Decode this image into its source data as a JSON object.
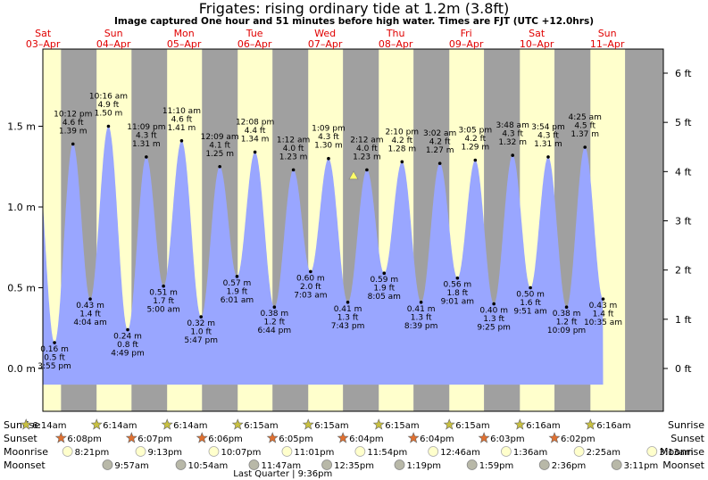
{
  "title": "Frigates: rising  ordinary tide at 1.2m (3.8ft)",
  "subtitle": "Image captured One hour and 51 minutes before high water. Times are FJT (UTC +12.0hrs)",
  "days": [
    {
      "name": "Sat",
      "date": "03–Apr"
    },
    {
      "name": "Sun",
      "date": "04–Apr"
    },
    {
      "name": "Mon",
      "date": "05–Apr"
    },
    {
      "name": "Tue",
      "date": "06–Apr"
    },
    {
      "name": "Wed",
      "date": "07–Apr"
    },
    {
      "name": "Thu",
      "date": "08–Apr"
    },
    {
      "name": "Fri",
      "date": "09–Apr"
    },
    {
      "name": "Sat",
      "date": "10–Apr"
    },
    {
      "name": "Sun",
      "date": "11–Apr"
    }
  ],
  "chart_data": {
    "type": "area",
    "xlabel": "",
    "ylabel": "",
    "y_unit_left": "m",
    "y_unit_right": "ft",
    "ylim": [
      -0.27,
      1.85
    ],
    "yticks_m": [
      "0.0 m",
      "0.5 m",
      "1.0 m",
      "1.5 m"
    ],
    "yticks_ft": [
      "0 ft",
      "1 ft",
      "2 ft",
      "3 ft",
      "4 ft",
      "5 ft",
      "6 ft"
    ],
    "grid": false,
    "colors": {
      "fill": "#99a6ff",
      "day": "#ffffcc",
      "night": "#a0a0a0",
      "day_label": "#e00000"
    },
    "current_level_m": 1.2,
    "extremes": [
      {
        "type": "low",
        "time": "3:55 pm",
        "m": 0.16,
        "ft": "0.5 ft",
        "label_m": "0.16 m"
      },
      {
        "type": "high",
        "time": "10:12 pm",
        "m": 1.39,
        "ft": "4.6 ft",
        "label_m": "1.39 m"
      },
      {
        "type": "low",
        "time": "4:04 am",
        "m": 0.43,
        "ft": "1.4 ft",
        "label_m": "0.43 m"
      },
      {
        "type": "high",
        "time": "10:16 am",
        "m": 1.5,
        "ft": "4.9 ft",
        "label_m": "1.50 m"
      },
      {
        "type": "low",
        "time": "4:49 pm",
        "m": 0.24,
        "ft": "0.8 ft",
        "label_m": "0.24 m"
      },
      {
        "type": "high",
        "time": "11:09 pm",
        "m": 1.31,
        "ft": "4.3 ft",
        "label_m": "1.31 m"
      },
      {
        "type": "low",
        "time": "5:00 am",
        "m": 0.51,
        "ft": "1.7 ft",
        "label_m": "0.51 m"
      },
      {
        "type": "high",
        "time": "11:10 am",
        "m": 1.41,
        "ft": "4.6 ft",
        "label_m": "1.41 m"
      },
      {
        "type": "low",
        "time": "5:47 pm",
        "m": 0.32,
        "ft": "1.0 ft",
        "label_m": "0.32 m"
      },
      {
        "type": "high",
        "time": "12:09 am",
        "m": 1.25,
        "ft": "4.1 ft",
        "label_m": "1.25 m"
      },
      {
        "type": "low",
        "time": "6:01 am",
        "m": 0.57,
        "ft": "1.9 ft",
        "label_m": "0.57 m"
      },
      {
        "type": "high",
        "time": "12:08 pm",
        "m": 1.34,
        "ft": "4.4 ft",
        "label_m": "1.34 m"
      },
      {
        "type": "low",
        "time": "6:44 pm",
        "m": 0.38,
        "ft": "1.2 ft",
        "label_m": "0.38 m"
      },
      {
        "type": "high",
        "time": "1:12 am",
        "m": 1.23,
        "ft": "4.0 ft",
        "label_m": "1.23 m"
      },
      {
        "type": "low",
        "time": "7:03 am",
        "m": 0.6,
        "ft": "2.0 ft",
        "label_m": "0.60 m"
      },
      {
        "type": "high",
        "time": "1:09 pm",
        "m": 1.3,
        "ft": "4.3 ft",
        "label_m": "1.30 m"
      },
      {
        "type": "low",
        "time": "7:43 pm",
        "m": 0.41,
        "ft": "1.3 ft",
        "label_m": "0.41 m"
      },
      {
        "type": "high",
        "time": "2:12 am",
        "m": 1.23,
        "ft": "4.0 ft",
        "label_m": "1.23 m"
      },
      {
        "type": "low",
        "time": "8:05 am",
        "m": 0.59,
        "ft": "1.9 ft",
        "label_m": "0.59 m"
      },
      {
        "type": "high",
        "time": "2:10 pm",
        "m": 1.28,
        "ft": "4.2 ft",
        "label_m": "1.28 m"
      },
      {
        "type": "low",
        "time": "8:39 pm",
        "m": 0.41,
        "ft": "1.3 ft",
        "label_m": "0.41 m"
      },
      {
        "type": "high",
        "time": "3:02 am",
        "m": 1.27,
        "ft": "4.2 ft",
        "label_m": "1.27 m"
      },
      {
        "type": "low",
        "time": "9:01 am",
        "m": 0.56,
        "ft": "1.8 ft",
        "label_m": "0.56 m"
      },
      {
        "type": "high",
        "time": "3:05 pm",
        "m": 1.29,
        "ft": "4.2 ft",
        "label_m": "1.29 m"
      },
      {
        "type": "low",
        "time": "9:25 pm",
        "m": 0.4,
        "ft": "1.3 ft",
        "label_m": "0.40 m"
      },
      {
        "type": "high",
        "time": "3:48 am",
        "m": 1.32,
        "ft": "4.3 ft",
        "label_m": "1.32 m"
      },
      {
        "type": "low",
        "time": "9:51 am",
        "m": 0.5,
        "ft": "1.6 ft",
        "label_m": "0.50 m"
      },
      {
        "type": "high",
        "time": "3:54 pm",
        "m": 1.31,
        "ft": "4.3 ft",
        "label_m": "1.31 m"
      },
      {
        "type": "low",
        "time": "10:09 pm",
        "m": 0.38,
        "ft": "1.2 ft",
        "label_m": "0.38 m"
      },
      {
        "type": "high",
        "time": "4:25 am",
        "m": 1.37,
        "ft": "4.5 ft",
        "label_m": "1.37 m"
      },
      {
        "type": "low",
        "time": "10:35 am",
        "m": 0.43,
        "ft": "1.4 ft",
        "label_m": "0.43 m"
      }
    ]
  },
  "rows": {
    "sunrise_label": "Sunrise",
    "sunset_label": "Sunset",
    "moonrise_label": "Moonrise",
    "moonset_label": "Moonset",
    "sunrise": [
      "6:14am",
      "6:14am",
      "6:14am",
      "6:15am",
      "6:15am",
      "6:15am",
      "6:15am",
      "6:16am",
      "6:16am"
    ],
    "sunset": [
      "6:08pm",
      "6:07pm",
      "6:06pm",
      "6:05pm",
      "6:04pm",
      "6:04pm",
      "6:03pm",
      "6:02pm"
    ],
    "moonrise": [
      "8:21pm",
      "9:13pm",
      "10:07pm",
      "11:01pm",
      "11:54pm",
      "12:46am",
      "1:36am",
      "2:25am",
      "3:13am"
    ],
    "moonset": [
      "9:57am",
      "10:54am",
      "11:47am",
      "12:35pm",
      "1:19pm",
      "1:59pm",
      "2:36pm",
      "3:11pm"
    ],
    "moon_phase": "Last Quarter | 9:36pm"
  }
}
